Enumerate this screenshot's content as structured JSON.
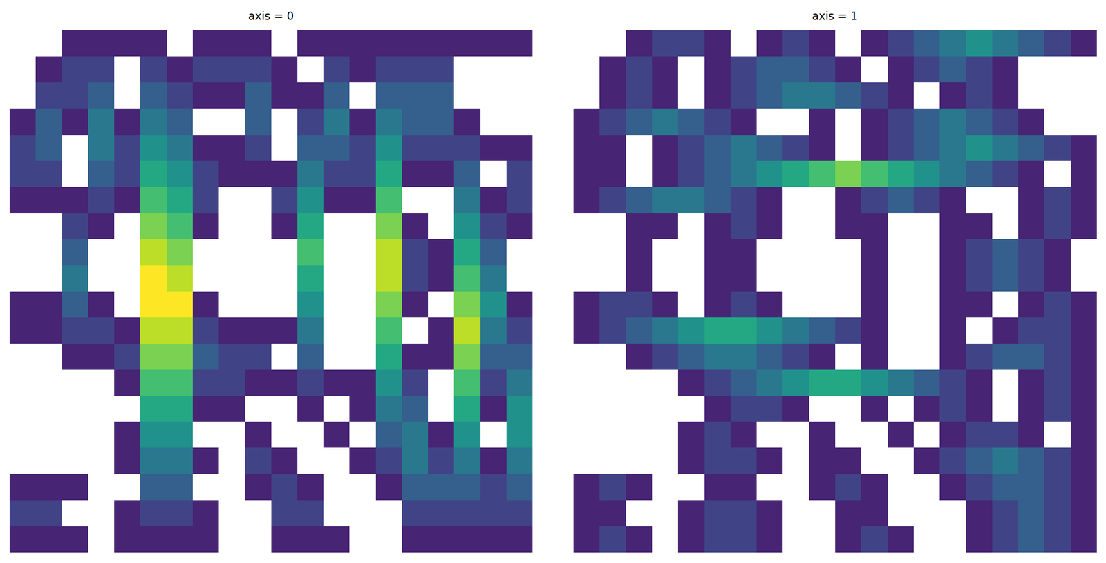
{
  "chart_data": [
    {
      "type": "heatmap",
      "title": "axis = 0",
      "color": "Viridis",
      "zlim": [
        0,
        10
      ],
      "tick_labels": false,
      "z": [
        [
          null,
          null,
          1,
          1,
          1,
          1,
          null,
          1,
          1,
          1,
          null,
          1,
          1,
          1,
          1,
          1,
          1,
          1,
          1,
          1
        ],
        [
          null,
          1,
          2,
          2,
          null,
          2,
          1,
          2,
          2,
          2,
          1,
          null,
          2,
          1,
          2,
          2,
          2,
          null,
          null,
          null
        ],
        [
          null,
          2,
          2,
          3,
          null,
          3,
          2,
          1,
          1,
          3,
          1,
          1,
          3,
          null,
          3,
          3,
          3,
          null,
          null,
          null
        ],
        [
          1,
          3,
          1,
          4,
          1,
          4,
          3,
          null,
          null,
          3,
          null,
          2,
          4,
          1,
          4,
          3,
          3,
          1,
          null,
          null
        ],
        [
          2,
          3,
          null,
          4,
          2,
          5,
          4,
          1,
          1,
          2,
          null,
          3,
          3,
          2,
          5,
          2,
          2,
          2,
          1,
          1
        ],
        [
          2,
          2,
          null,
          3,
          2,
          6,
          5,
          2,
          1,
          1,
          1,
          4,
          2,
          2,
          6,
          1,
          1,
          3,
          null,
          2
        ],
        [
          1,
          1,
          1,
          2,
          1,
          7,
          6,
          2,
          null,
          null,
          2,
          5,
          1,
          1,
          7,
          null,
          null,
          4,
          1,
          2
        ],
        [
          null,
          null,
          2,
          1,
          null,
          8,
          7,
          1,
          null,
          null,
          1,
          6,
          null,
          null,
          8,
          1,
          null,
          5,
          2,
          1
        ],
        [
          null,
          null,
          3,
          null,
          null,
          9,
          8,
          null,
          null,
          null,
          null,
          7,
          null,
          null,
          9,
          2,
          1,
          6,
          3,
          null
        ],
        [
          null,
          null,
          4,
          null,
          null,
          10,
          9,
          null,
          null,
          null,
          null,
          6,
          null,
          null,
          9,
          2,
          1,
          7,
          4,
          null
        ],
        [
          1,
          1,
          3,
          1,
          null,
          10,
          10,
          1,
          null,
          null,
          null,
          5,
          null,
          null,
          8,
          1,
          null,
          8,
          5,
          1
        ],
        [
          1,
          1,
          2,
          2,
          1,
          9,
          9,
          2,
          1,
          1,
          1,
          4,
          null,
          null,
          7,
          null,
          1,
          9,
          4,
          2
        ],
        [
          null,
          null,
          1,
          1,
          2,
          8,
          8,
          3,
          2,
          2,
          null,
          3,
          null,
          null,
          6,
          1,
          1,
          8,
          3,
          3
        ],
        [
          null,
          null,
          null,
          null,
          1,
          7,
          7,
          2,
          2,
          1,
          1,
          2,
          1,
          1,
          5,
          2,
          null,
          7,
          2,
          4
        ],
        [
          null,
          null,
          null,
          null,
          null,
          6,
          6,
          1,
          1,
          null,
          null,
          1,
          null,
          1,
          4,
          3,
          null,
          6,
          1,
          5
        ],
        [
          null,
          null,
          null,
          null,
          1,
          5,
          5,
          null,
          null,
          1,
          null,
          null,
          1,
          null,
          3,
          4,
          1,
          5,
          null,
          5
        ],
        [
          null,
          null,
          null,
          null,
          1,
          4,
          4,
          1,
          null,
          2,
          1,
          null,
          null,
          1,
          2,
          4,
          2,
          4,
          1,
          4
        ],
        [
          1,
          1,
          1,
          null,
          null,
          3,
          3,
          null,
          null,
          1,
          2,
          1,
          null,
          null,
          1,
          3,
          3,
          3,
          2,
          3
        ],
        [
          2,
          2,
          null,
          null,
          1,
          2,
          2,
          1,
          null,
          null,
          2,
          2,
          null,
          null,
          null,
          2,
          2,
          2,
          2,
          2
        ],
        [
          1,
          1,
          1,
          null,
          1,
          1,
          1,
          1,
          null,
          null,
          1,
          1,
          1,
          null,
          null,
          1,
          1,
          1,
          1,
          1
        ]
      ]
    },
    {
      "type": "heatmap",
      "title": "axis = 1",
      "color": "Viridis",
      "zlim": [
        0,
        10
      ],
      "tick_labels": false,
      "z": [
        [
          null,
          null,
          1,
          2,
          2,
          1,
          null,
          1,
          2,
          1,
          null,
          1,
          2,
          3,
          4,
          5,
          4,
          3,
          2,
          1
        ],
        [
          null,
          1,
          2,
          1,
          null,
          1,
          2,
          3,
          3,
          2,
          1,
          null,
          1,
          2,
          3,
          2,
          1,
          null,
          null,
          null
        ],
        [
          null,
          1,
          2,
          1,
          null,
          1,
          2,
          3,
          4,
          4,
          3,
          2,
          1,
          null,
          1,
          2,
          1,
          null,
          null,
          null
        ],
        [
          1,
          2,
          3,
          4,
          3,
          2,
          1,
          null,
          null,
          1,
          null,
          1,
          2,
          3,
          4,
          3,
          2,
          1,
          null,
          null
        ],
        [
          1,
          1,
          null,
          1,
          2,
          3,
          4,
          3,
          2,
          1,
          null,
          1,
          2,
          3,
          4,
          5,
          4,
          3,
          2,
          1
        ],
        [
          1,
          1,
          null,
          1,
          2,
          3,
          4,
          5,
          6,
          7,
          8,
          7,
          6,
          5,
          4,
          3,
          2,
          1,
          null,
          1
        ],
        [
          1,
          2,
          3,
          4,
          4,
          3,
          2,
          1,
          null,
          null,
          1,
          2,
          3,
          2,
          1,
          null,
          null,
          1,
          2,
          1
        ],
        [
          null,
          null,
          1,
          1,
          null,
          1,
          2,
          1,
          null,
          null,
          1,
          1,
          null,
          null,
          1,
          1,
          null,
          1,
          2,
          1
        ],
        [
          null,
          null,
          1,
          null,
          null,
          1,
          1,
          null,
          null,
          null,
          null,
          1,
          null,
          null,
          1,
          2,
          3,
          2,
          1,
          null
        ],
        [
          null,
          null,
          1,
          null,
          null,
          1,
          1,
          null,
          null,
          null,
          null,
          1,
          null,
          null,
          1,
          2,
          3,
          2,
          1,
          null
        ],
        [
          1,
          2,
          2,
          1,
          null,
          1,
          2,
          1,
          null,
          null,
          null,
          1,
          null,
          null,
          1,
          1,
          null,
          1,
          2,
          1
        ],
        [
          1,
          2,
          3,
          4,
          5,
          6,
          6,
          5,
          4,
          3,
          2,
          1,
          null,
          null,
          1,
          null,
          1,
          2,
          2,
          1
        ],
        [
          null,
          null,
          1,
          2,
          3,
          4,
          4,
          3,
          2,
          1,
          null,
          1,
          null,
          null,
          1,
          2,
          3,
          3,
          2,
          1
        ],
        [
          null,
          null,
          null,
          null,
          1,
          2,
          3,
          4,
          5,
          6,
          6,
          5,
          4,
          3,
          2,
          1,
          null,
          1,
          2,
          1
        ],
        [
          null,
          null,
          null,
          null,
          null,
          1,
          2,
          2,
          1,
          null,
          null,
          1,
          null,
          1,
          2,
          1,
          null,
          1,
          2,
          1
        ],
        [
          null,
          null,
          null,
          null,
          1,
          2,
          1,
          null,
          null,
          1,
          null,
          null,
          1,
          null,
          1,
          2,
          2,
          1,
          null,
          1
        ],
        [
          null,
          null,
          null,
          null,
          1,
          2,
          2,
          1,
          null,
          1,
          1,
          null,
          null,
          1,
          2,
          3,
          4,
          3,
          2,
          1
        ],
        [
          1,
          2,
          1,
          null,
          null,
          1,
          1,
          null,
          null,
          1,
          2,
          1,
          null,
          null,
          1,
          2,
          3,
          3,
          2,
          1
        ],
        [
          1,
          1,
          null,
          null,
          1,
          2,
          2,
          1,
          null,
          null,
          1,
          1,
          null,
          null,
          null,
          1,
          2,
          3,
          2,
          1
        ],
        [
          1,
          2,
          1,
          null,
          1,
          2,
          2,
          1,
          null,
          null,
          1,
          2,
          1,
          null,
          null,
          1,
          2,
          3,
          2,
          1
        ]
      ]
    }
  ]
}
